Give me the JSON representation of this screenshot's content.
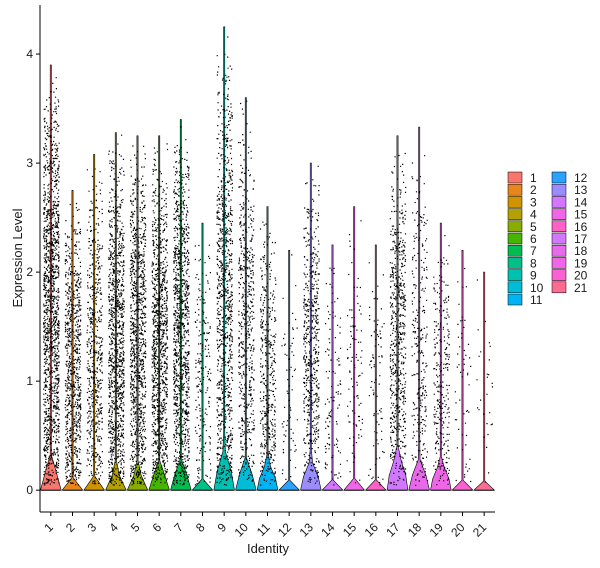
{
  "chart_data": {
    "type": "violin",
    "xlabel": "Identity",
    "ylabel": "Expression Level",
    "ylim": [
      -0.2,
      4.45
    ],
    "yticks": [
      0,
      1,
      2,
      3,
      4
    ],
    "grid": false,
    "legend_position": "right",
    "categories": [
      "1",
      "2",
      "3",
      "4",
      "5",
      "6",
      "7",
      "8",
      "9",
      "10",
      "11",
      "12",
      "13",
      "14",
      "15",
      "16",
      "17",
      "18",
      "19",
      "20",
      "21"
    ],
    "colors": [
      "#F8766D",
      "#E7851E",
      "#D09400",
      "#B2A100",
      "#89AC00",
      "#45B500",
      "#00BC51",
      "#00C087",
      "#00C0B2",
      "#00BCD6",
      "#00B3F2",
      "#29A3FF",
      "#9C8DFF",
      "#D277FF",
      "#F166E8",
      "#FF61C7",
      "#D277FF",
      "#E869E9",
      "#F166E8",
      "#FA62D2",
      "#FF6C91"
    ],
    "series": [
      {
        "name": "1",
        "max": 3.9,
        "violin_height": 0.3,
        "density": 1.0
      },
      {
        "name": "2",
        "max": 2.75,
        "violin_height": 0.02,
        "density": 0.55
      },
      {
        "name": "3",
        "max": 3.08,
        "violin_height": 0.02,
        "density": 0.4
      },
      {
        "name": "4",
        "max": 3.28,
        "violin_height": 0.2,
        "density": 0.75
      },
      {
        "name": "5",
        "max": 3.25,
        "violin_height": 0.2,
        "density": 0.7
      },
      {
        "name": "6",
        "max": 3.25,
        "violin_height": 0.25,
        "density": 0.75
      },
      {
        "name": "7",
        "max": 3.4,
        "violin_height": 0.28,
        "density": 0.8
      },
      {
        "name": "8",
        "max": 2.45,
        "violin_height": 0.02,
        "density": 0.15
      },
      {
        "name": "9",
        "max": 4.25,
        "violin_height": 0.4,
        "density": 0.7
      },
      {
        "name": "10",
        "max": 3.6,
        "violin_height": 0.3,
        "density": 0.4
      },
      {
        "name": "11",
        "max": 2.6,
        "violin_height": 0.3,
        "density": 0.3
      },
      {
        "name": "12",
        "max": 2.2,
        "violin_height": 0.02,
        "density": 0.05
      },
      {
        "name": "13",
        "max": 3.0,
        "violin_height": 0.3,
        "density": 0.4
      },
      {
        "name": "14",
        "max": 2.25,
        "violin_height": 0.02,
        "density": 0.08
      },
      {
        "name": "15",
        "max": 2.6,
        "violin_height": 0.02,
        "density": 0.07
      },
      {
        "name": "16",
        "max": 2.25,
        "violin_height": 0.02,
        "density": 0.06
      },
      {
        "name": "17",
        "max": 3.25,
        "violin_height": 0.4,
        "density": 0.45
      },
      {
        "name": "18",
        "max": 3.33,
        "violin_height": 0.3,
        "density": 0.2
      },
      {
        "name": "19",
        "max": 2.45,
        "violin_height": 0.3,
        "density": 0.2
      },
      {
        "name": "20",
        "max": 2.2,
        "violin_height": 0.02,
        "density": 0.04
      },
      {
        "name": "21",
        "max": 2.0,
        "violin_height": 0.02,
        "density": 0.02
      }
    ]
  }
}
